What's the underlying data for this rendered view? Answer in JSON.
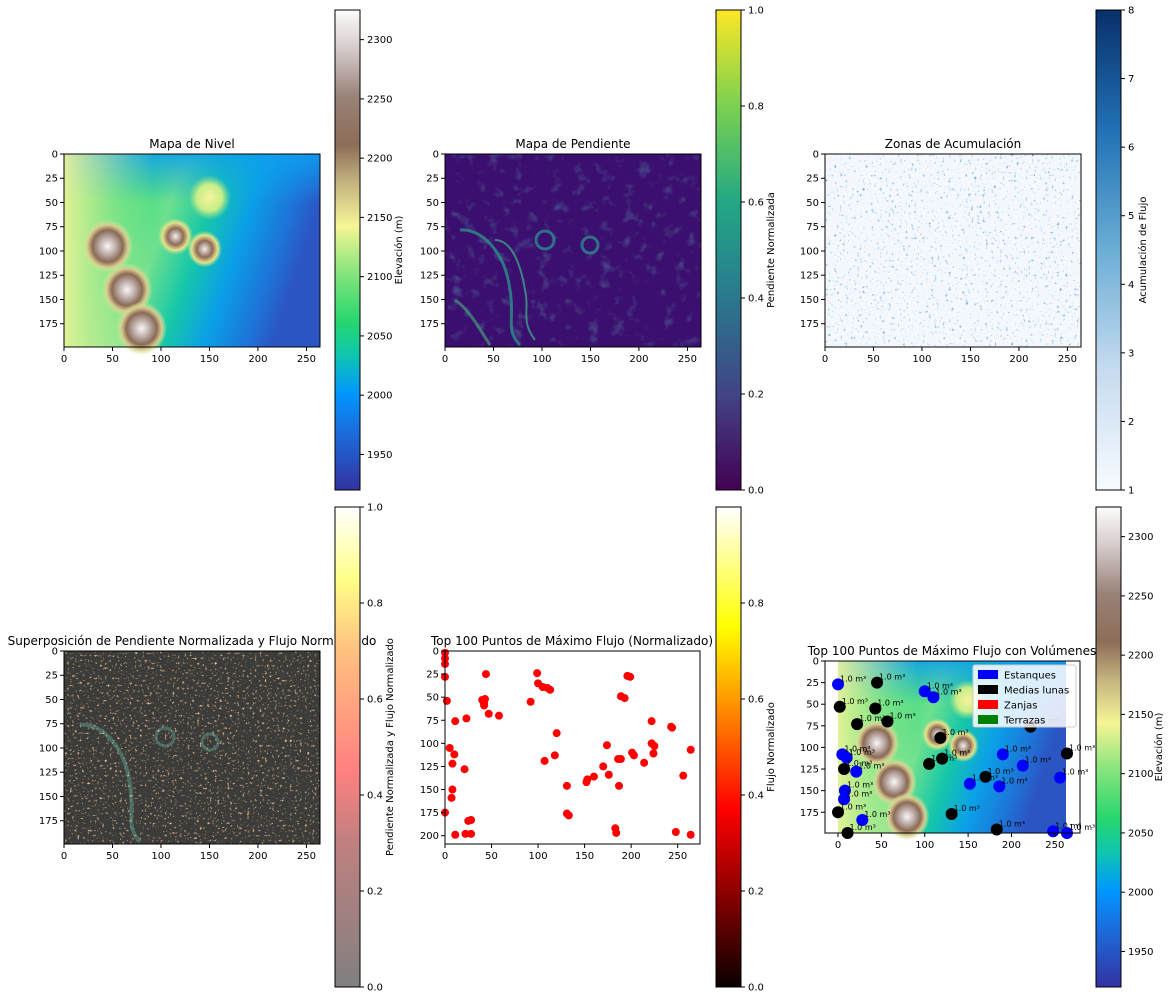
{
  "chart_data": [
    {
      "type": "heatmap",
      "title": "Mapa de Nivel",
      "x_ticks": [
        0,
        50,
        100,
        150,
        200,
        250
      ],
      "y_ticks": [
        0,
        25,
        50,
        75,
        100,
        125,
        150,
        175
      ],
      "xlim": [
        0,
        264
      ],
      "ylim": [
        199,
        0
      ],
      "colorbar": {
        "label": "Elevación (m)",
        "range": [
          1920,
          2325
        ],
        "ticks": [
          1950,
          2000,
          2050,
          2100,
          2150,
          2200,
          2250,
          2300
        ],
        "colormap": "terrain"
      },
      "hills": [
        {
          "x": 45,
          "y": 95,
          "value": 2310
        },
        {
          "x": 65,
          "y": 140,
          "value": 2300
        },
        {
          "x": 80,
          "y": 180,
          "value": 2290
        },
        {
          "x": 145,
          "y": 98,
          "value": 2260
        },
        {
          "x": 115,
          "y": 85,
          "value": 2220
        },
        {
          "x": 150,
          "y": 45,
          "value": 2120
        }
      ]
    },
    {
      "type": "heatmap",
      "title": "Mapa de Pendiente",
      "x_ticks": [
        0,
        50,
        100,
        150,
        200,
        250
      ],
      "y_ticks": [
        0,
        25,
        50,
        75,
        100,
        125,
        150,
        175
      ],
      "xlim": [
        0,
        264
      ],
      "ylim": [
        199,
        0
      ],
      "colorbar": {
        "label": "Pendiente Normalizada",
        "range": [
          0,
          1
        ],
        "ticks": [
          "0.0",
          "0.2",
          "0.4",
          "0.6",
          "0.8",
          "1.0"
        ],
        "colormap": "viridis"
      }
    },
    {
      "type": "heatmap",
      "title": "Zonas de Acumulación",
      "x_ticks": [
        0,
        50,
        100,
        150,
        200,
        250
      ],
      "y_ticks": [
        0,
        25,
        50,
        75,
        100,
        125,
        150,
        175
      ],
      "xlim": [
        0,
        264
      ],
      "ylim": [
        199,
        0
      ],
      "colorbar": {
        "label": "Acumulación de Flujo",
        "range": [
          1,
          8
        ],
        "ticks": [
          1,
          2,
          3,
          4,
          5,
          6,
          7,
          8
        ],
        "colormap": "Blues"
      }
    },
    {
      "type": "heatmap",
      "title": "Superposición de Pendiente Normalizada y Flujo Normalizado",
      "x_ticks": [
        0,
        50,
        100,
        150,
        200,
        250
      ],
      "y_ticks": [
        0,
        25,
        50,
        75,
        100,
        125,
        150,
        175
      ],
      "xlim": [
        0,
        264
      ],
      "ylim": [
        199,
        0
      ],
      "colorbar": {
        "label": "Pendiente Normalizada y Flujo Normalizado",
        "range": [
          0,
          1
        ],
        "ticks": [
          "0.0",
          "0.2",
          "0.4",
          "0.6",
          "0.8",
          "1.0"
        ],
        "colormap": "hot_gray"
      }
    },
    {
      "type": "scatter",
      "title": "Top 100 Puntos de Máximo Flujo (Normalizado)",
      "x_ticks": [
        0,
        50,
        100,
        150,
        200,
        250
      ],
      "y_ticks": [
        0,
        25,
        50,
        75,
        100,
        125,
        150,
        175,
        200
      ],
      "xlim": [
        0,
        274
      ],
      "ylim": [
        209,
        0
      ],
      "colorbar": {
        "label": "Flujo Normalizado",
        "range": [
          0,
          1
        ],
        "ticks": [
          "0.0",
          "0.2",
          "0.4",
          "0.6",
          "0.8"
        ],
        "colormap": "hot"
      },
      "points": [
        [
          0,
          28
        ],
        [
          2,
          54
        ],
        [
          0,
          175
        ],
        [
          5,
          105
        ],
        [
          8,
          122
        ],
        [
          10,
          112
        ],
        [
          11,
          76
        ],
        [
          8,
          150
        ],
        [
          7,
          159
        ],
        [
          11,
          199
        ],
        [
          21,
          128
        ],
        [
          23,
          73
        ],
        [
          25,
          184
        ],
        [
          28,
          183
        ],
        [
          22,
          198
        ],
        [
          28,
          198
        ],
        [
          40,
          53
        ],
        [
          42,
          57
        ],
        [
          43,
          52
        ],
        [
          42,
          59
        ],
        [
          44,
          25
        ],
        [
          47,
          68
        ],
        [
          58,
          70
        ],
        [
          92,
          55
        ],
        [
          99,
          24
        ],
        [
          100,
          35
        ],
        [
          105,
          39
        ],
        [
          107,
          119
        ],
        [
          110,
          40
        ],
        [
          113,
          42
        ],
        [
          118,
          113
        ],
        [
          120,
          89
        ],
        [
          131,
          176
        ],
        [
          133,
          178
        ],
        [
          131,
          146
        ],
        [
          152,
          142
        ],
        [
          153,
          139
        ],
        [
          160,
          136
        ],
        [
          170,
          125
        ],
        [
          174,
          102
        ],
        [
          176,
          134
        ],
        [
          183,
          192
        ],
        [
          184,
          197
        ],
        [
          186,
          117
        ],
        [
          189,
          117
        ],
        [
          187,
          146
        ],
        [
          189,
          49
        ],
        [
          193,
          51
        ],
        [
          196,
          27
        ],
        [
          199,
          28
        ],
        [
          201,
          110
        ],
        [
          203,
          113
        ],
        [
          214,
          121
        ],
        [
          222,
          100
        ],
        [
          222,
          76
        ],
        [
          224,
          111
        ],
        [
          225,
          103
        ],
        [
          243,
          82
        ],
        [
          244,
          83
        ],
        [
          248,
          196
        ],
        [
          256,
          135
        ],
        [
          264,
          107
        ],
        [
          264,
          199
        ],
        [
          0,
          2
        ],
        [
          0,
          8
        ],
        [
          0,
          14
        ]
      ]
    },
    {
      "type": "scatter",
      "title": "Top 100 Puntos de Máximo Flujo con Volúmenes",
      "x_ticks": [
        0,
        50,
        100,
        150,
        200,
        250
      ],
      "y_ticks": [
        0,
        25,
        50,
        75,
        100,
        125,
        150,
        175
      ],
      "xlim": [
        -15,
        279
      ],
      "ylim": [
        199,
        0
      ],
      "colorbar": {
        "label": "Elevación (m)",
        "range": [
          1920,
          2325
        ],
        "ticks": [
          1950,
          2000,
          2050,
          2100,
          2150,
          2200,
          2250,
          2300
        ],
        "colormap": "terrain"
      },
      "legend": {
        "position": "top-right",
        "entries": [
          {
            "label": "Estanques",
            "color": "#0000ff"
          },
          {
            "label": "Medias lunas",
            "color": "#000000"
          },
          {
            "label": "Zanjas",
            "color": "#ff0000"
          },
          {
            "label": "Terrazas",
            "color": "#008000"
          }
        ]
      },
      "volume_label": "1.0 m³",
      "points": [
        {
          "x": 0,
          "y": 27,
          "c": "#0000ff"
        },
        {
          "x": 45,
          "y": 25,
          "c": "#000000"
        },
        {
          "x": 2,
          "y": 53,
          "c": "#000000"
        },
        {
          "x": 43,
          "y": 55,
          "c": "#000000"
        },
        {
          "x": 22,
          "y": 73,
          "c": "#000000"
        },
        {
          "x": 57,
          "y": 70,
          "c": "#000000"
        },
        {
          "x": 100,
          "y": 35,
          "c": "#0000ff"
        },
        {
          "x": 110,
          "y": 42,
          "c": "#0000ff"
        },
        {
          "x": 118,
          "y": 89,
          "c": "#000000"
        },
        {
          "x": 5,
          "y": 108,
          "c": "#0000ff"
        },
        {
          "x": 10,
          "y": 112,
          "c": "#0000ff"
        },
        {
          "x": 7,
          "y": 125,
          "c": "#000000"
        },
        {
          "x": 21,
          "y": 128,
          "c": "#0000ff"
        },
        {
          "x": 105,
          "y": 119,
          "c": "#000000"
        },
        {
          "x": 120,
          "y": 113,
          "c": "#000000"
        },
        {
          "x": 190,
          "y": 108,
          "c": "#0000ff"
        },
        {
          "x": 213,
          "y": 121,
          "c": "#0000ff"
        },
        {
          "x": 222,
          "y": 76,
          "c": "#000000"
        },
        {
          "x": 264,
          "y": 107,
          "c": "#000000"
        },
        {
          "x": 152,
          "y": 142,
          "c": "#0000ff"
        },
        {
          "x": 170,
          "y": 134,
          "c": "#000000"
        },
        {
          "x": 186,
          "y": 145,
          "c": "#0000ff"
        },
        {
          "x": 256,
          "y": 135,
          "c": "#0000ff"
        },
        {
          "x": 8,
          "y": 150,
          "c": "#0000ff"
        },
        {
          "x": 7,
          "y": 160,
          "c": "#0000ff"
        },
        {
          "x": 0,
          "y": 175,
          "c": "#000000"
        },
        {
          "x": 131,
          "y": 177,
          "c": "#000000"
        },
        {
          "x": 28,
          "y": 184,
          "c": "#0000ff"
        },
        {
          "x": 11,
          "y": 199,
          "c": "#000000"
        },
        {
          "x": 183,
          "y": 195,
          "c": "#000000"
        },
        {
          "x": 248,
          "y": 197,
          "c": "#0000ff"
        },
        {
          "x": 264,
          "y": 199,
          "c": "#0000ff"
        }
      ]
    }
  ]
}
